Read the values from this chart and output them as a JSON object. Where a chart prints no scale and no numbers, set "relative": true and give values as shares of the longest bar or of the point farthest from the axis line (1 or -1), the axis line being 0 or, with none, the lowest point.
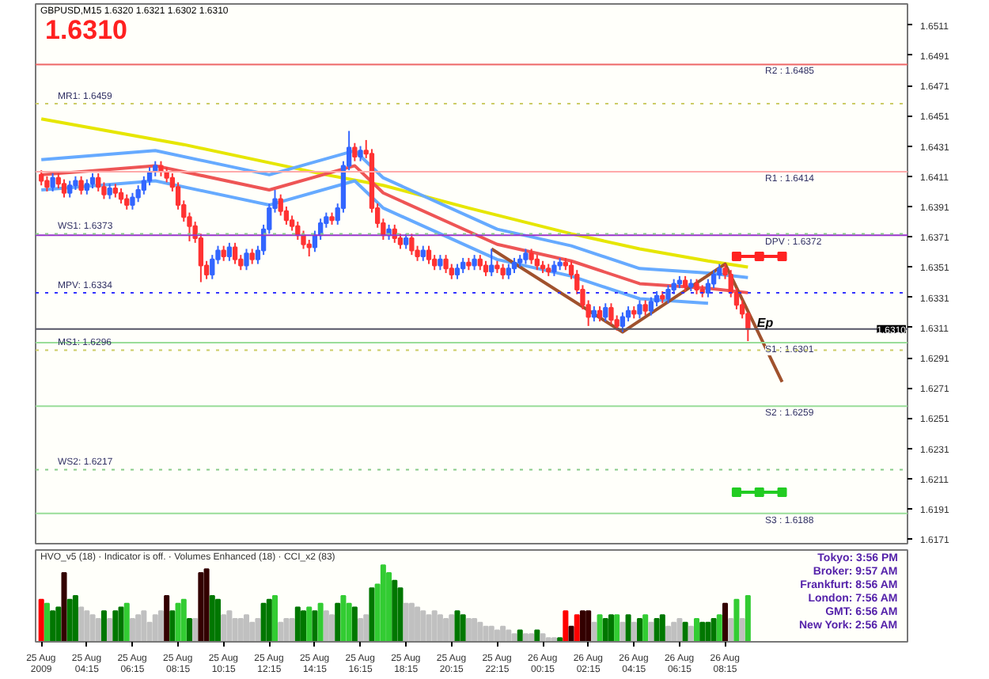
{
  "chart_data": [
    {
      "type": "candlestick",
      "title": "GBPUSD,M15 1.6320 1.6321 1.6302 1.6310",
      "subtitle": "1.6310",
      "x": [
        "2009-08-25T02:15",
        "2009-08-25T02:30",
        "2009-08-25T02:45",
        "2009-08-25T03:00",
        "2009-08-25T03:15",
        "2009-08-25T03:30",
        "2009-08-25T03:45",
        "2009-08-25T04:00",
        "2009-08-25T04:15",
        "2009-08-25T04:30",
        "2009-08-25T04:45",
        "2009-08-25T05:00",
        "2009-08-25T05:15",
        "2009-08-25T05:30",
        "2009-08-25T05:45",
        "2009-08-25T06:00",
        "2009-08-25T06:15",
        "2009-08-25T06:30",
        "2009-08-25T06:45",
        "2009-08-25T07:00",
        "2009-08-25T07:15",
        "2009-08-25T07:30",
        "2009-08-25T07:45",
        "2009-08-25T08:00",
        "2009-08-25T08:15",
        "2009-08-25T08:30",
        "2009-08-25T08:45",
        "2009-08-25T09:00",
        "2009-08-25T09:15",
        "2009-08-25T09:30",
        "2009-08-25T09:45",
        "2009-08-25T10:00",
        "2009-08-25T10:15",
        "2009-08-25T10:30",
        "2009-08-25T10:45",
        "2009-08-25T11:00",
        "2009-08-25T11:15",
        "2009-08-25T11:30",
        "2009-08-25T11:45",
        "2009-08-25T12:00",
        "2009-08-25T12:15",
        "2009-08-25T12:30",
        "2009-08-25T12:45",
        "2009-08-25T13:00",
        "2009-08-25T13:15",
        "2009-08-25T13:30",
        "2009-08-25T13:45",
        "2009-08-25T14:00",
        "2009-08-25T14:15",
        "2009-08-25T14:30",
        "2009-08-25T14:45",
        "2009-08-25T15:00",
        "2009-08-25T15:15",
        "2009-08-25T15:30",
        "2009-08-25T15:45",
        "2009-08-25T16:00",
        "2009-08-25T16:15",
        "2009-08-25T16:30",
        "2009-08-25T16:45",
        "2009-08-25T17:00",
        "2009-08-25T17:15",
        "2009-08-25T17:30",
        "2009-08-25T17:45",
        "2009-08-25T18:00",
        "2009-08-25T18:15",
        "2009-08-25T18:30",
        "2009-08-25T18:45",
        "2009-08-25T19:00",
        "2009-08-25T19:15",
        "2009-08-25T19:30",
        "2009-08-25T19:45",
        "2009-08-25T20:00",
        "2009-08-25T20:15",
        "2009-08-25T20:30",
        "2009-08-25T20:45",
        "2009-08-25T21:00",
        "2009-08-25T21:15",
        "2009-08-25T21:30",
        "2009-08-25T21:45",
        "2009-08-25T22:00",
        "2009-08-25T22:15",
        "2009-08-25T22:30",
        "2009-08-25T22:45",
        "2009-08-25T23:00",
        "2009-08-25T23:15",
        "2009-08-25T23:30",
        "2009-08-25T23:45",
        "2009-08-26T00:00",
        "2009-08-26T00:15",
        "2009-08-26T00:30",
        "2009-08-26T00:45",
        "2009-08-26T01:00",
        "2009-08-26T01:15",
        "2009-08-26T01:30",
        "2009-08-26T01:45",
        "2009-08-26T02:00",
        "2009-08-26T02:15",
        "2009-08-26T02:30",
        "2009-08-26T02:45",
        "2009-08-26T03:00",
        "2009-08-26T03:15",
        "2009-08-26T03:30",
        "2009-08-26T03:45",
        "2009-08-26T04:00",
        "2009-08-26T04:15",
        "2009-08-26T04:30",
        "2009-08-26T04:45",
        "2009-08-26T05:00",
        "2009-08-26T05:15",
        "2009-08-26T05:30",
        "2009-08-26T05:45",
        "2009-08-26T06:00",
        "2009-08-26T06:15",
        "2009-08-26T06:30",
        "2009-08-26T06:45",
        "2009-08-26T07:00",
        "2009-08-26T07:15",
        "2009-08-26T07:30",
        "2009-08-26T07:45",
        "2009-08-26T08:00",
        "2009-08-26T08:15",
        "2009-08-26T08:30",
        "2009-08-26T08:45",
        "2009-08-26T09:00",
        "2009-08-26T09:15"
      ],
      "ohlc": [
        [
          1.6412,
          1.6415,
          1.6405,
          1.6408
        ],
        [
          1.6408,
          1.6411,
          1.6401,
          1.6404
        ],
        [
          1.6404,
          1.6413,
          1.6401,
          1.641
        ],
        [
          1.641,
          1.6413,
          1.6403,
          1.6406
        ],
        [
          1.6406,
          1.6409,
          1.6397,
          1.64
        ],
        [
          1.64,
          1.6408,
          1.6397,
          1.6405
        ],
        [
          1.6405,
          1.6411,
          1.6402,
          1.6408
        ],
        [
          1.6408,
          1.6411,
          1.6399,
          1.6402
        ],
        [
          1.6402,
          1.6409,
          1.6399,
          1.6406
        ],
        [
          1.6406,
          1.6413,
          1.6403,
          1.641
        ],
        [
          1.641,
          1.6413,
          1.6401,
          1.6404
        ],
        [
          1.6404,
          1.6407,
          1.6396,
          1.6399
        ],
        [
          1.6399,
          1.6406,
          1.6396,
          1.6403
        ],
        [
          1.6403,
          1.6406,
          1.6397,
          1.64
        ],
        [
          1.64,
          1.6403,
          1.6393,
          1.6396
        ],
        [
          1.6396,
          1.6399,
          1.6389,
          1.6392
        ],
        [
          1.6392,
          1.64,
          1.6389,
          1.6397
        ],
        [
          1.6397,
          1.6405,
          1.6394,
          1.6402
        ],
        [
          1.6402,
          1.6411,
          1.6399,
          1.6408
        ],
        [
          1.6408,
          1.6417,
          1.6405,
          1.6414
        ],
        [
          1.6414,
          1.6421,
          1.6411,
          1.6418
        ],
        [
          1.6418,
          1.6421,
          1.6411,
          1.6414
        ],
        [
          1.6414,
          1.6417,
          1.6407,
          1.641
        ],
        [
          1.641,
          1.6413,
          1.6401,
          1.6404
        ],
        [
          1.6404,
          1.6407,
          1.6389,
          1.6392
        ],
        [
          1.6392,
          1.6395,
          1.6381,
          1.6384
        ],
        [
          1.6384,
          1.6387,
          1.6368,
          1.6378
        ],
        [
          1.6378,
          1.6381,
          1.6367,
          1.637
        ],
        [
          1.637,
          1.6373,
          1.6341,
          1.6352
        ],
        [
          1.6352,
          1.6355,
          1.6343,
          1.6346
        ],
        [
          1.6346,
          1.6359,
          1.6343,
          1.6356
        ],
        [
          1.6356,
          1.6365,
          1.6353,
          1.6362
        ],
        [
          1.6362,
          1.6365,
          1.6355,
          1.6358
        ],
        [
          1.6358,
          1.6367,
          1.6355,
          1.6364
        ],
        [
          1.6364,
          1.6367,
          1.6353,
          1.6356
        ],
        [
          1.6356,
          1.6359,
          1.6349,
          1.6352
        ],
        [
          1.6352,
          1.6363,
          1.6349,
          1.636
        ],
        [
          1.636,
          1.6363,
          1.6353,
          1.6356
        ],
        [
          1.6356,
          1.6365,
          1.6353,
          1.6362
        ],
        [
          1.6362,
          1.6379,
          1.6359,
          1.6376
        ],
        [
          1.6376,
          1.6393,
          1.6373,
          1.639
        ],
        [
          1.639,
          1.6402,
          1.6387,
          1.6396
        ],
        [
          1.6396,
          1.6399,
          1.6385,
          1.6388
        ],
        [
          1.6388,
          1.6391,
          1.6379,
          1.6382
        ],
        [
          1.6382,
          1.6385,
          1.6375,
          1.6378
        ],
        [
          1.6378,
          1.6381,
          1.6369,
          1.6372
        ],
        [
          1.6372,
          1.6375,
          1.6363,
          1.6366
        ],
        [
          1.6366,
          1.6369,
          1.6358,
          1.6364
        ],
        [
          1.6364,
          1.6375,
          1.6361,
          1.6372
        ],
        [
          1.6372,
          1.6383,
          1.6369,
          1.638
        ],
        [
          1.638,
          1.6387,
          1.6377,
          1.6384
        ],
        [
          1.6384,
          1.6387,
          1.6379,
          1.6382
        ],
        [
          1.6382,
          1.6393,
          1.6379,
          1.639
        ],
        [
          1.639,
          1.6421,
          1.6387,
          1.6418
        ],
        [
          1.6418,
          1.6441,
          1.6415,
          1.643
        ],
        [
          1.643,
          1.6433,
          1.6421,
          1.6424
        ],
        [
          1.6424,
          1.6431,
          1.6421,
          1.6428
        ],
        [
          1.6428,
          1.6435,
          1.6423,
          1.6426
        ],
        [
          1.6426,
          1.6429,
          1.6387,
          1.639
        ],
        [
          1.639,
          1.6393,
          1.6377,
          1.638
        ],
        [
          1.638,
          1.6383,
          1.6369,
          1.6372
        ],
        [
          1.6372,
          1.6379,
          1.6369,
          1.6376
        ],
        [
          1.6376,
          1.6379,
          1.6367,
          1.637
        ],
        [
          1.637,
          1.6373,
          1.6363,
          1.6366
        ],
        [
          1.6366,
          1.6373,
          1.6363,
          1.637
        ],
        [
          1.637,
          1.6373,
          1.6359,
          1.6362
        ],
        [
          1.6362,
          1.6365,
          1.6355,
          1.6358
        ],
        [
          1.6358,
          1.6365,
          1.6355,
          1.6362
        ],
        [
          1.6362,
          1.6365,
          1.6353,
          1.6356
        ],
        [
          1.6356,
          1.6359,
          1.6349,
          1.6352
        ],
        [
          1.6352,
          1.6359,
          1.6349,
          1.6356
        ],
        [
          1.6356,
          1.6359,
          1.6347,
          1.635
        ],
        [
          1.635,
          1.6353,
          1.6343,
          1.6346
        ],
        [
          1.6346,
          1.6353,
          1.6343,
          1.635
        ],
        [
          1.635,
          1.6357,
          1.6347,
          1.6354
        ],
        [
          1.6354,
          1.6357,
          1.6349,
          1.6352
        ],
        [
          1.6352,
          1.6359,
          1.6349,
          1.6356
        ],
        [
          1.6356,
          1.6359,
          1.6349,
          1.6352
        ],
        [
          1.6352,
          1.6355,
          1.6345,
          1.6348
        ],
        [
          1.6348,
          1.6363,
          1.6345,
          1.6352
        ],
        [
          1.6352,
          1.6355,
          1.6347,
          1.635
        ],
        [
          1.635,
          1.6353,
          1.6343,
          1.6346
        ],
        [
          1.6346,
          1.6353,
          1.6343,
          1.635
        ],
        [
          1.635,
          1.6357,
          1.6347,
          1.6354
        ],
        [
          1.6354,
          1.6359,
          1.6351,
          1.6356
        ],
        [
          1.6356,
          1.6363,
          1.6353,
          1.636
        ],
        [
          1.636,
          1.6363,
          1.6353,
          1.6356
        ],
        [
          1.6356,
          1.6359,
          1.6349,
          1.6352
        ],
        [
          1.6352,
          1.6355,
          1.6347,
          1.635
        ],
        [
          1.635,
          1.6353,
          1.6345,
          1.6348
        ],
        [
          1.6348,
          1.6355,
          1.6345,
          1.6352
        ],
        [
          1.6352,
          1.6357,
          1.6349,
          1.6354
        ],
        [
          1.6354,
          1.6357,
          1.6349,
          1.6352
        ],
        [
          1.6352,
          1.6355,
          1.6343,
          1.6346
        ],
        [
          1.6346,
          1.6349,
          1.6333,
          1.6336
        ],
        [
          1.6336,
          1.6339,
          1.6323,
          1.6326
        ],
        [
          1.6326,
          1.6329,
          1.6312,
          1.6318
        ],
        [
          1.6318,
          1.6325,
          1.6315,
          1.6322
        ],
        [
          1.6322,
          1.6325,
          1.6315,
          1.6318
        ],
        [
          1.6318,
          1.6327,
          1.6315,
          1.6324
        ],
        [
          1.6324,
          1.6327,
          1.6313,
          1.6316
        ],
        [
          1.6316,
          1.6319,
          1.6309,
          1.6312
        ],
        [
          1.6312,
          1.6321,
          1.6308,
          1.6318
        ],
        [
          1.6318,
          1.6325,
          1.6315,
          1.6322
        ],
        [
          1.6322,
          1.6325,
          1.6317,
          1.632
        ],
        [
          1.632,
          1.6329,
          1.6317,
          1.6326
        ],
        [
          1.6326,
          1.6329,
          1.6319,
          1.6322
        ],
        [
          1.6322,
          1.6331,
          1.6319,
          1.6328
        ],
        [
          1.6328,
          1.6335,
          1.6325,
          1.6332
        ],
        [
          1.6332,
          1.6335,
          1.6327,
          1.633
        ],
        [
          1.633,
          1.6339,
          1.6327,
          1.6336
        ],
        [
          1.6336,
          1.6343,
          1.6333,
          1.634
        ],
        [
          1.634,
          1.6345,
          1.6337,
          1.6342
        ],
        [
          1.6342,
          1.6345,
          1.6335,
          1.6338
        ],
        [
          1.6338,
          1.6343,
          1.6335,
          1.634
        ],
        [
          1.634,
          1.6343,
          1.6333,
          1.6336
        ],
        [
          1.6336,
          1.6339,
          1.6331,
          1.6334
        ],
        [
          1.6334,
          1.6343,
          1.6331,
          1.634
        ],
        [
          1.634,
          1.6349,
          1.6337,
          1.6346
        ],
        [
          1.6346,
          1.6353,
          1.6343,
          1.635
        ],
        [
          1.635,
          1.6353,
          1.6343,
          1.6346
        ],
        [
          1.6346,
          1.6349,
          1.6331,
          1.6334
        ],
        [
          1.6334,
          1.6337,
          1.6323,
          1.6326
        ],
        [
          1.6326,
          1.6329,
          1.6317,
          1.632
        ],
        [
          1.632,
          1.6321,
          1.6302,
          1.631
        ]
      ],
      "series": [
        {
          "type": "line",
          "color": "#e6e600",
          "marker": "none",
          "x": [
            "2009-08-25T02:15",
            "2009-08-25T08:30",
            "2009-08-25T14:45",
            "2009-08-25T17:15",
            "2009-08-25T21:00",
            "2009-08-26T01:30",
            "2009-08-26T04:30",
            "2009-08-26T07:30",
            "2009-08-26T09:15"
          ],
          "values": [
            1.6449,
            1.6432,
            1.6412,
            1.6405,
            1.639,
            1.6373,
            1.6363,
            1.6355,
            1.6351
          ]
        },
        {
          "type": "line",
          "color": "#66aaff",
          "marker": "none",
          "x": [
            "2009-08-25T02:15",
            "2009-08-25T07:15",
            "2009-08-25T12:15",
            "2009-08-25T16:00",
            "2009-08-25T17:15",
            "2009-08-25T22:15",
            "2009-08-26T01:30",
            "2009-08-26T04:30",
            "2009-08-26T07:30",
            "2009-08-26T09:15"
          ],
          "values": [
            1.6422,
            1.6428,
            1.6412,
            1.6428,
            1.641,
            1.6376,
            1.6365,
            1.635,
            1.6347,
            1.6344
          ]
        },
        {
          "type": "line",
          "color": "#ee5555",
          "marker": "none",
          "x": [
            "2009-08-25T02:15",
            "2009-08-25T07:15",
            "2009-08-25T12:15",
            "2009-08-25T16:00",
            "2009-08-25T17:15",
            "2009-08-25T22:15",
            "2009-08-26T01:30",
            "2009-08-26T04:30",
            "2009-08-26T07:30",
            "2009-08-26T09:15"
          ],
          "values": [
            1.6412,
            1.6418,
            1.6402,
            1.6418,
            1.64,
            1.6366,
            1.6355,
            1.634,
            1.6337,
            1.6334
          ]
        },
        {
          "type": "line",
          "color": "#66aaff",
          "marker": "none",
          "x": [
            "2009-08-25T02:15",
            "2009-08-25T07:15",
            "2009-08-25T12:15",
            "2009-08-25T16:00",
            "2009-08-25T17:15",
            "2009-08-25T22:15",
            "2009-08-26T01:30",
            "2009-08-26T04:30",
            "2009-08-26T07:30"
          ],
          "values": [
            1.6402,
            1.6408,
            1.6392,
            1.6408,
            1.639,
            1.6356,
            1.6345,
            1.633,
            1.6327
          ]
        },
        {
          "type": "line",
          "color": "#a0522d",
          "marker": "none",
          "x": [
            "2009-08-25T22:00",
            "2009-08-26T03:45",
            "2009-08-26T08:15",
            "2009-08-26T10:45"
          ],
          "values": [
            1.6363,
            1.6308,
            1.6353,
            1.6275
          ]
        },
        {
          "type": "line",
          "color": "#ff2222",
          "marker": "square",
          "x": [
            "2009-08-26T08:45",
            "2009-08-26T09:45",
            "2009-08-26T10:45"
          ],
          "values": [
            1.6358,
            1.6358,
            1.6358
          ]
        },
        {
          "type": "line",
          "color": "#22cc22",
          "marker": "square",
          "x": [
            "2009-08-26T08:45",
            "2009-08-26T09:45",
            "2009-08-26T10:45"
          ],
          "values": [
            1.6202,
            1.6202,
            1.6202
          ]
        }
      ],
      "ref_lines": [
        {
          "axis": "y",
          "value": 1.6485,
          "label": "R2 : 1.6485",
          "color": "#ee6666",
          "line_style": "solid"
        },
        {
          "axis": "y",
          "value": 1.6414,
          "label": "R1 : 1.6414",
          "color": "#ffaaaa",
          "line_style": "solid"
        },
        {
          "axis": "y",
          "value": 1.6372,
          "label": "DPV : 1.6372",
          "color": "#9933cc",
          "line_style": "solid"
        },
        {
          "axis": "y",
          "value": 1.6301,
          "label": "S1 : 1.6301",
          "color": "#99dd99",
          "line_style": "solid"
        },
        {
          "axis": "y",
          "value": 1.6259,
          "label": "S2 : 1.6259",
          "color": "#99dd99",
          "line_style": "solid"
        },
        {
          "axis": "y",
          "value": 1.6188,
          "label": "S3 : 1.6188",
          "color": "#99dd99",
          "line_style": "solid"
        },
        {
          "axis": "y",
          "value": 1.6459,
          "label": "MR1: 1.6459",
          "color": "#cccc66",
          "line_style": "dotted"
        },
        {
          "axis": "y",
          "value": 1.6373,
          "label": "WS1: 1.6373",
          "color": "#88cc88",
          "line_style": "dotted"
        },
        {
          "axis": "y",
          "value": 1.6334,
          "label": "MPV: 1.6334",
          "color": "#3333ff",
          "line_style": "dotted"
        },
        {
          "axis": "y",
          "value": 1.6296,
          "label": "MS1: 1.6296",
          "color": "#cccc66",
          "line_style": "dotted"
        },
        {
          "axis": "y",
          "value": 1.6217,
          "label": "WS2: 1.6217",
          "color": "#88cc88",
          "line_style": "dotted"
        },
        {
          "axis": "y",
          "value": 1.631,
          "label": "1.6310",
          "color": "#555566",
          "line_style": "solid"
        }
      ],
      "annotations": [
        {
          "text": "Ep",
          "x": "2009-08-26T10:00",
          "y": 1.6314
        }
      ],
      "xlim": [
        "2009-08-25T02:00",
        "2009-08-26T16:15"
      ],
      "ylim": [
        1.6168,
        1.6525
      ],
      "yticks": [
        1.6171,
        1.6191,
        1.6211,
        1.6231,
        1.6251,
        1.6271,
        1.6291,
        1.6311,
        1.6331,
        1.6351,
        1.6371,
        1.6391,
        1.6411,
        1.6431,
        1.6451,
        1.6471,
        1.6491,
        1.6511
      ],
      "tick_labels": "y"
    },
    {
      "type": "bar",
      "relative": true,
      "tick_labels": "x",
      "x": [
        "2009-08-25T02:15",
        "2009-08-25T02:30",
        "2009-08-25T02:45",
        "2009-08-25T03:00",
        "2009-08-25T03:15",
        "2009-08-25T03:30",
        "2009-08-25T03:45",
        "2009-08-25T04:00",
        "2009-08-25T04:15",
        "2009-08-25T04:30",
        "2009-08-25T04:45",
        "2009-08-25T05:00",
        "2009-08-25T05:15",
        "2009-08-25T05:30",
        "2009-08-25T05:45",
        "2009-08-25T06:00",
        "2009-08-25T06:15",
        "2009-08-25T06:30",
        "2009-08-25T06:45",
        "2009-08-25T07:00",
        "2009-08-25T07:15",
        "2009-08-25T07:30",
        "2009-08-25T07:45",
        "2009-08-25T08:00",
        "2009-08-25T08:15",
        "2009-08-25T08:30",
        "2009-08-25T08:45",
        "2009-08-25T09:00",
        "2009-08-25T09:15",
        "2009-08-25T09:30",
        "2009-08-25T09:45",
        "2009-08-25T10:00",
        "2009-08-25T10:15",
        "2009-08-25T10:30",
        "2009-08-25T10:45",
        "2009-08-25T11:00",
        "2009-08-25T11:15",
        "2009-08-25T11:30",
        "2009-08-25T11:45",
        "2009-08-25T12:00",
        "2009-08-25T12:15",
        "2009-08-25T12:30",
        "2009-08-25T12:45",
        "2009-08-25T13:00",
        "2009-08-25T13:15",
        "2009-08-25T13:30",
        "2009-08-25T13:45",
        "2009-08-25T14:00",
        "2009-08-25T14:15",
        "2009-08-25T14:30",
        "2009-08-25T14:45",
        "2009-08-25T15:00",
        "2009-08-25T15:15",
        "2009-08-25T15:30",
        "2009-08-25T15:45",
        "2009-08-25T16:00",
        "2009-08-25T16:15",
        "2009-08-25T16:30",
        "2009-08-25T16:45",
        "2009-08-25T17:00",
        "2009-08-25T17:15",
        "2009-08-25T17:30",
        "2009-08-25T17:45",
        "2009-08-25T18:00",
        "2009-08-25T18:15",
        "2009-08-25T18:30",
        "2009-08-25T18:45",
        "2009-08-25T19:00",
        "2009-08-25T19:15",
        "2009-08-25T19:30",
        "2009-08-25T19:45",
        "2009-08-25T20:00",
        "2009-08-25T20:15",
        "2009-08-25T20:30",
        "2009-08-25T20:45",
        "2009-08-25T21:00",
        "2009-08-25T21:15",
        "2009-08-25T21:30",
        "2009-08-25T21:45",
        "2009-08-25T22:00",
        "2009-08-25T22:15",
        "2009-08-25T22:30",
        "2009-08-25T22:45",
        "2009-08-25T23:00",
        "2009-08-25T23:15",
        "2009-08-25T23:30",
        "2009-08-25T23:45",
        "2009-08-26T00:00",
        "2009-08-26T00:15",
        "2009-08-26T00:30",
        "2009-08-26T00:45",
        "2009-08-26T01:00",
        "2009-08-26T01:15",
        "2009-08-26T01:30",
        "2009-08-26T01:45",
        "2009-08-26T02:00",
        "2009-08-26T02:15",
        "2009-08-26T02:30",
        "2009-08-26T02:45",
        "2009-08-26T03:00",
        "2009-08-26T03:15",
        "2009-08-26T03:30",
        "2009-08-26T03:45",
        "2009-08-26T04:00",
        "2009-08-26T04:15",
        "2009-08-26T04:30",
        "2009-08-26T04:45",
        "2009-08-26T05:00",
        "2009-08-26T05:15",
        "2009-08-26T05:30",
        "2009-08-26T05:45",
        "2009-08-26T06:00",
        "2009-08-26T06:15",
        "2009-08-26T06:30",
        "2009-08-26T06:45",
        "2009-08-26T07:00",
        "2009-08-26T07:15",
        "2009-08-26T07:30",
        "2009-08-26T07:45",
        "2009-08-26T08:00",
        "2009-08-26T08:15",
        "2009-08-26T08:30",
        "2009-08-26T08:45",
        "2009-08-26T09:00",
        "2009-08-26T09:15"
      ],
      "values": [
        0.55,
        0.5,
        0.4,
        0.45,
        0.9,
        0.55,
        0.6,
        0.45,
        0.4,
        0.35,
        0.3,
        0.4,
        0.3,
        0.4,
        0.45,
        0.5,
        0.3,
        0.35,
        0.4,
        0.25,
        0.35,
        0.4,
        0.6,
        0.4,
        0.5,
        0.55,
        0.3,
        0.3,
        0.9,
        0.95,
        0.6,
        0.55,
        0.35,
        0.4,
        0.3,
        0.3,
        0.35,
        0.25,
        0.3,
        0.5,
        0.55,
        0.6,
        0.25,
        0.3,
        0.3,
        0.45,
        0.4,
        0.45,
        0.4,
        0.5,
        0.4,
        0.35,
        0.5,
        0.6,
        0.5,
        0.45,
        0.3,
        0.35,
        0.7,
        0.75,
        1,
        0.9,
        0.8,
        0.7,
        0.5,
        0.5,
        0.45,
        0.4,
        0.35,
        0.4,
        0.35,
        0.3,
        0.35,
        0.4,
        0.35,
        0.3,
        0.3,
        0.25,
        0.2,
        0.2,
        0.15,
        0.2,
        0.15,
        0.1,
        0.15,
        0.1,
        0.1,
        0.15,
        0.1,
        0.05,
        0.05,
        0.05,
        0.4,
        0.2,
        0.35,
        0.4,
        0.4,
        0.25,
        0.35,
        0.3,
        0.35,
        0.35,
        0.25,
        0.35,
        0.25,
        0.3,
        0.35,
        0.25,
        0.3,
        0.35,
        0.2,
        0.25,
        0.3,
        0.25,
        0.2,
        0.3,
        0.25,
        0.25,
        0.3,
        0.35,
        0.5,
        0.3,
        0.55,
        0.3,
        0.6
      ],
      "colors": [
        "#ff0000",
        "#33cc33",
        "#007700",
        "#007700",
        "#330000",
        "#007700",
        "#007700",
        "#c0c0c0",
        "#c0c0c0",
        "#c0c0c0",
        "#c0c0c0",
        "#007700",
        "#c0c0c0",
        "#007700",
        "#007700",
        "#33cc33",
        "#c0c0c0",
        "#c0c0c0",
        "#c0c0c0",
        "#c0c0c0",
        "#c0c0c0",
        "#c0c0c0",
        "#330000",
        "#007700",
        "#33cc33",
        "#33cc33",
        "#007700",
        "#c0c0c0",
        "#330000",
        "#330000",
        "#007700",
        "#007700",
        "#c0c0c0",
        "#c0c0c0",
        "#c0c0c0",
        "#c0c0c0",
        "#c0c0c0",
        "#c0c0c0",
        "#c0c0c0",
        "#007700",
        "#007700",
        "#33cc33",
        "#c0c0c0",
        "#c0c0c0",
        "#c0c0c0",
        "#007700",
        "#007700",
        "#33cc33",
        "#007700",
        "#33cc33",
        "#c0c0c0",
        "#c0c0c0",
        "#007700",
        "#33cc33",
        "#33cc33",
        "#007700",
        "#c0c0c0",
        "#c0c0c0",
        "#007700",
        "#33cc33",
        "#33cc33",
        "#33cc33",
        "#007700",
        "#007700",
        "#c0c0c0",
        "#c0c0c0",
        "#c0c0c0",
        "#c0c0c0",
        "#c0c0c0",
        "#c0c0c0",
        "#c0c0c0",
        "#c0c0c0",
        "#c0c0c0",
        "#007700",
        "#007700",
        "#c0c0c0",
        "#c0c0c0",
        "#c0c0c0",
        "#c0c0c0",
        "#c0c0c0",
        "#c0c0c0",
        "#c0c0c0",
        "#c0c0c0",
        "#c0c0c0",
        "#007700",
        "#c0c0c0",
        "#c0c0c0",
        "#007700",
        "#c0c0c0",
        "#c0c0c0",
        "#c0c0c0",
        "#007700",
        "#ff0000",
        "#330000",
        "#ff0000",
        "#330000",
        "#330000",
        "#c0c0c0",
        "#33cc33",
        "#007700",
        "#007700",
        "#33cc33",
        "#c0c0c0",
        "#007700",
        "#c0c0c0",
        "#007700",
        "#33cc33",
        "#c0c0c0",
        "#007700",
        "#007700",
        "#c0c0c0",
        "#c0c0c0",
        "#c0c0c0",
        "#007700",
        "#c0c0c0",
        "#33cc33",
        "#007700",
        "#007700",
        "#007700",
        "#33cc33",
        "#330000",
        "#c0c0c0",
        "#33cc33",
        "#c0c0c0",
        "#33cc33"
      ],
      "annotations": [
        "HVO_v5 (18) · Indicator is off. · Volumes Enhanced (18) · CCI_x2 (83)",
        "Tokyo: 3:56 PM",
        "Broker: 9:57 AM",
        "Frankfurt: 8:56 AM",
        "London: 7:56 AM",
        "GMT: 6:56 AM",
        "New York: 2:56 AM"
      ],
      "xlim": [
        "2009-08-25T02:00",
        "2009-08-26T16:15"
      ],
      "xticks": [
        {
          "value": "2009-08-25T02:15",
          "label": "25 Aug 2009"
        },
        {
          "value": "2009-08-25T04:15",
          "label": "25 Aug 04:15"
        },
        {
          "value": "2009-08-25T06:15",
          "label": "25 Aug 06:15"
        },
        {
          "value": "2009-08-25T08:15",
          "label": "25 Aug 08:15"
        },
        {
          "value": "2009-08-25T10:15",
          "label": "25 Aug 10:15"
        },
        {
          "value": "2009-08-25T12:15",
          "label": "25 Aug 12:15"
        },
        {
          "value": "2009-08-25T14:15",
          "label": "25 Aug 14:15"
        },
        {
          "value": "2009-08-25T16:15",
          "label": "25 Aug 16:15"
        },
        {
          "value": "2009-08-25T18:15",
          "label": "25 Aug 18:15"
        },
        {
          "value": "2009-08-25T20:15",
          "label": "25 Aug 20:15"
        },
        {
          "value": "2009-08-25T22:15",
          "label": "25 Aug 22:15"
        },
        {
          "value": "2009-08-26T00:15",
          "label": "26 Aug 00:15"
        },
        {
          "value": "2009-08-26T02:15",
          "label": "26 Aug 02:15"
        },
        {
          "value": "2009-08-26T04:15",
          "label": "26 Aug 04:15"
        },
        {
          "value": "2009-08-26T06:15",
          "label": "26 Aug 06:15"
        },
        {
          "value": "2009-08-26T08:15",
          "label": "26 Aug 08:15"
        }
      ]
    }
  ]
}
